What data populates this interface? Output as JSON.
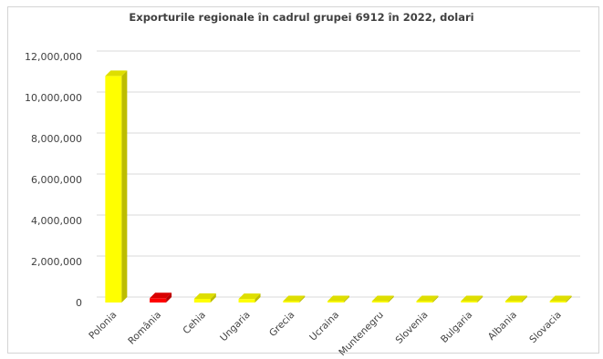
{
  "chart_data": {
    "type": "bar",
    "title": "Exporturile regionale în cadrul grupei 6912 în 2022, dolari",
    "xlabel": "",
    "ylabel": "",
    "ylim": [
      0,
      12000000
    ],
    "yticks": [
      0,
      2000000,
      4000000,
      6000000,
      8000000,
      10000000,
      12000000
    ],
    "ytick_labels": [
      "0",
      "2,000,000",
      "4,000,000",
      "6,000,000",
      "8,000,000",
      "10,000,000",
      "12,000,000"
    ],
    "grid": true,
    "style": "3d-bars",
    "categories": [
      "Polonia",
      "România",
      "Cehia",
      "Ungaria",
      "Grecia",
      "Ucraina",
      "Muntenegru",
      "Slovenia",
      "Bulgaria",
      "Albania",
      "Slovacia"
    ],
    "values": [
      11050000,
      210000,
      180000,
      170000,
      20000,
      15000,
      10000,
      10000,
      10000,
      10000,
      10000
    ],
    "bar_colors": [
      "#ffff00",
      "#ff0000",
      "#ffff00",
      "#ffff00",
      "#ffff00",
      "#ffff00",
      "#ffff00",
      "#ffff00",
      "#ffff00",
      "#ffff00",
      "#ffff00"
    ],
    "side_colors": [
      "#bdbd00",
      "#b80000",
      "#bdbd00",
      "#bdbd00",
      "#bdbd00",
      "#bdbd00",
      "#bdbd00",
      "#bdbd00",
      "#bdbd00",
      "#bdbd00",
      "#bdbd00"
    ],
    "top_colors": [
      "#dede00",
      "#d80000",
      "#dede00",
      "#dede00",
      "#dede00",
      "#dede00",
      "#dede00",
      "#dede00",
      "#dede00",
      "#dede00",
      "#dede00"
    ],
    "gridline_color": "#d9d9d9"
  }
}
